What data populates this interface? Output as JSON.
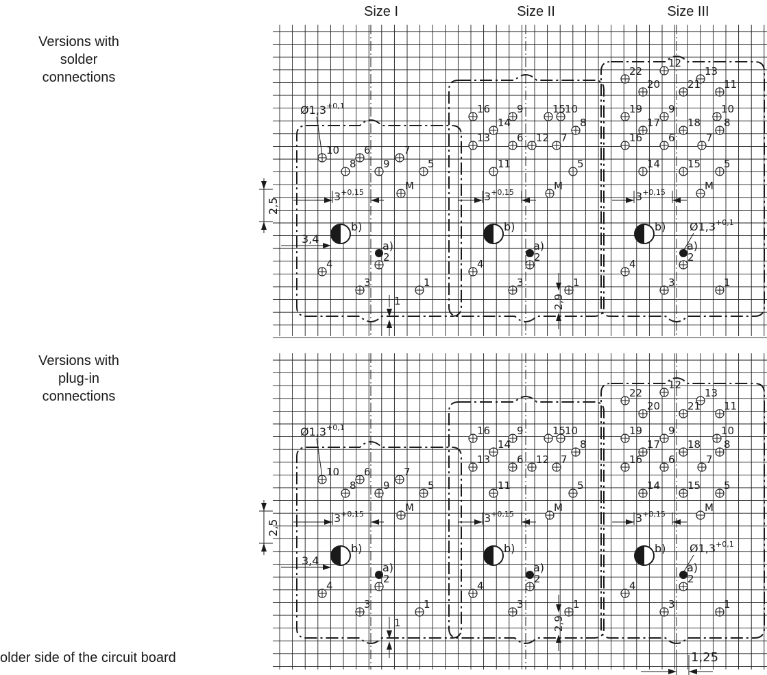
{
  "column_titles": [
    "Size I",
    "Size II",
    "Size III"
  ],
  "row_labels": [
    [
      "Versions with",
      "solder",
      "connections"
    ],
    [
      "Versions with",
      "plug-in",
      "connections"
    ]
  ],
  "footer": "older side of the circuit board",
  "labels": {
    "hole_dia_base": "Ø1,3",
    "hole_dia_tol": "+0,1",
    "dim_3_base": "3",
    "dim_3_tol": "+0,15",
    "dim_25": "2,5",
    "dim_34": "3,4",
    "dim_1": "1",
    "dim_29": "2,9",
    "dim_125": "1,25",
    "mark_a": "a)",
    "mark_b": "b)"
  },
  "pin_layouts": {
    "size_I": [
      "10",
      "8",
      "6",
      "9",
      "7",
      "5",
      "M",
      "4",
      "2",
      "3",
      "1"
    ],
    "size_II": [
      "16",
      "14",
      "13",
      "11",
      "9",
      "6",
      "15",
      "12",
      "10",
      "8",
      "7",
      "5",
      "M",
      "4",
      "2",
      "3",
      "1"
    ],
    "size_III": [
      "22",
      "20",
      "19",
      "17",
      "16",
      "14",
      "12",
      "9",
      "6",
      "13",
      "21",
      "18",
      "15",
      "11",
      "10",
      "8",
      "7",
      "5",
      "M",
      "4",
      "2",
      "3",
      "1"
    ]
  },
  "colors": {
    "ink": "#1a1a1a",
    "background": "#ffffff"
  }
}
